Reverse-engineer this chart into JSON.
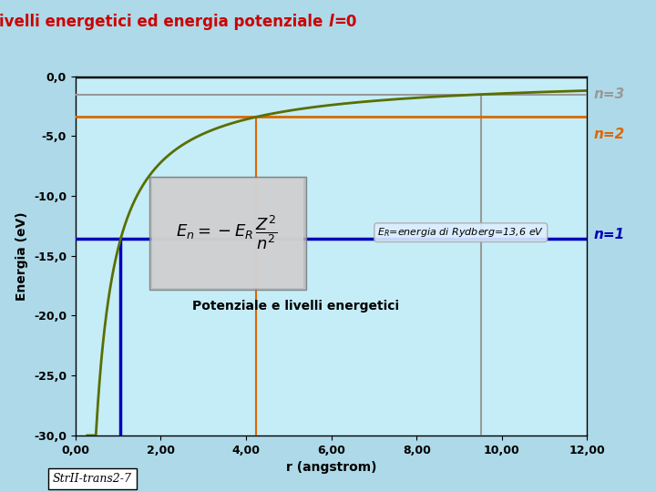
{
  "title_part1": "Atomo di idrogeno: livelli energetici ed energia potenziale ",
  "title_italic": "l",
  "title_part2": "=0",
  "xlabel": "r (angstrom)",
  "ylabel": "Energia (eV)",
  "xlim": [
    0,
    12
  ],
  "ylim": [
    -30,
    0
  ],
  "xticks": [
    0.0,
    2.0,
    4.0,
    6.0,
    8.0,
    10.0,
    12.0
  ],
  "yticks": [
    0.0,
    -5.0,
    -10.0,
    -15.0,
    -20.0,
    -25.0,
    -30.0
  ],
  "xtick_labels": [
    "0,00",
    "2,00",
    "4,00",
    "6,00",
    "8,00",
    "10,00",
    "12,00"
  ],
  "ytick_labels": [
    "0,0",
    "-5,0",
    "-10,0",
    "-15,0",
    "-20,0",
    "-25,0",
    "-30,0"
  ],
  "bg_color": "#aed9e8",
  "plot_bg_color": "#c5edf7",
  "title_color": "#cc0000",
  "E_R": 13.6,
  "n1_energy": -13.6,
  "n2_energy": -3.4,
  "n3_energy": -1.511,
  "n1_color": "#0000bb",
  "n2_color": "#dd6600",
  "n3_color": "#999999",
  "curve_color": "#5a6e00",
  "vline1_x": 1.06,
  "vline2_x": 4.23,
  "vline3_x": 9.52,
  "footnote": "StrII-trans2-7",
  "subtitle": "Potenziale e livelli energetici",
  "rydberg_text": "E_R=energia di Rydberg=13,6 eV"
}
